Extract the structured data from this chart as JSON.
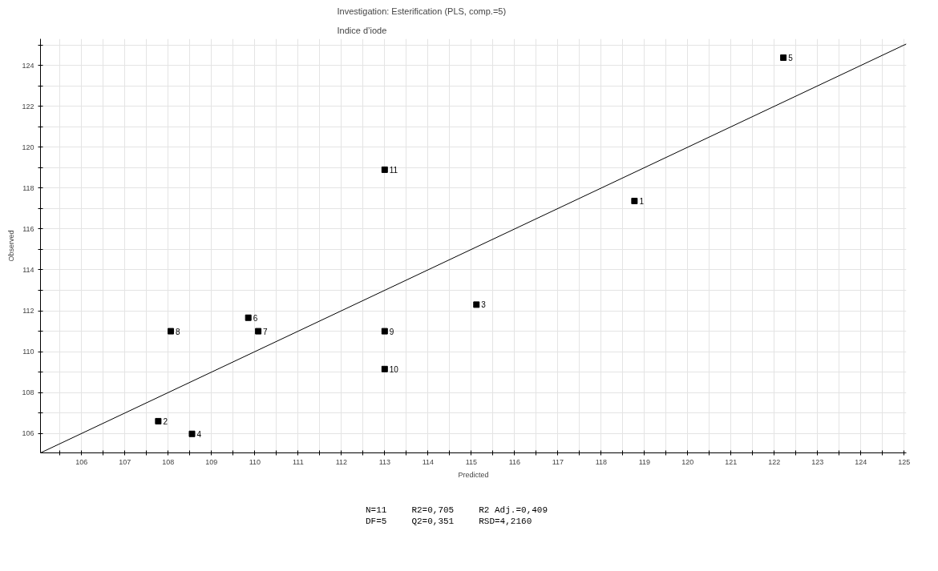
{
  "chart_data": {
    "type": "scatter",
    "title": "Investigation: Esterification (PLS, comp.=5)",
    "subtitle": "Indice d’iode",
    "xlabel": "Predicted",
    "ylabel": "Observed",
    "series": [
      {
        "color": "#000000",
        "marker": "square",
        "x": [
          118.77,
          107.77,
          115.12,
          108.55,
          122.21,
          109.85,
          110.08,
          108.06,
          113.0,
          113.0,
          113.0
        ],
        "values": [
          117.37,
          106.6,
          112.3,
          105.98,
          124.38,
          111.66,
          111.0,
          111.0,
          111.0,
          109.15,
          118.9
        ]
      },
      {
        "type": "line",
        "color": "#000000",
        "marker": "none",
        "line_style": "solid",
        "x": [
          105.05,
          125.05
        ],
        "values": [
          105.05,
          125.05
        ]
      }
    ],
    "annotations": [
      {
        "text": "1",
        "x": 118.77,
        "y": 117.37
      },
      {
        "text": "2",
        "x": 107.77,
        "y": 106.6
      },
      {
        "text": "3",
        "x": 115.12,
        "y": 112.3
      },
      {
        "text": "4",
        "x": 108.55,
        "y": 105.98
      },
      {
        "text": "5",
        "x": 122.21,
        "y": 124.38
      },
      {
        "text": "6",
        "x": 109.85,
        "y": 111.66
      },
      {
        "text": "7",
        "x": 110.08,
        "y": 111.0
      },
      {
        "text": "8",
        "x": 108.06,
        "y": 111.0
      },
      {
        "text": "9",
        "x": 113.0,
        "y": 111.0
      },
      {
        "text": "10",
        "x": 113.0,
        "y": 109.15
      },
      {
        "text": "11",
        "x": 113.0,
        "y": 118.9
      },
      "N=11",
      "R2=0,705",
      "R2 Adj.=0,409",
      "DF=5",
      "Q2=0,351",
      "RSD=4,2160"
    ],
    "xlim": [
      105.05,
      125.05
    ],
    "ylim": [
      105.05,
      125.3
    ],
    "xticks": [
      {
        "value": 105.5,
        "label": null
      },
      106,
      {
        "value": 106.5,
        "label": null
      },
      107,
      {
        "value": 107.5,
        "label": null
      },
      108,
      {
        "value": 108.5,
        "label": null
      },
      109,
      {
        "value": 109.5,
        "label": null
      },
      110,
      {
        "value": 110.5,
        "label": null
      },
      111,
      {
        "value": 111.5,
        "label": null
      },
      112,
      {
        "value": 112.5,
        "label": null
      },
      113,
      {
        "value": 113.5,
        "label": null
      },
      114,
      {
        "value": 114.5,
        "label": null
      },
      115,
      {
        "value": 115.5,
        "label": null
      },
      116,
      {
        "value": 116.5,
        "label": null
      },
      117,
      {
        "value": 117.5,
        "label": null
      },
      118,
      {
        "value": 118.5,
        "label": null
      },
      119,
      {
        "value": 119.5,
        "label": null
      },
      120,
      {
        "value": 120.5,
        "label": null
      },
      121,
      {
        "value": 121.5,
        "label": null
      },
      122,
      {
        "value": 122.5,
        "label": null
      },
      123,
      {
        "value": 123.5,
        "label": null
      },
      124,
      {
        "value": 124.5,
        "label": null
      },
      125
    ],
    "yticks": [
      106,
      {
        "value": 107,
        "label": null
      },
      108,
      {
        "value": 109,
        "label": null
      },
      110,
      {
        "value": 111,
        "label": null
      },
      112,
      {
        "value": 113,
        "label": null
      },
      114,
      {
        "value": 115,
        "label": null
      },
      116,
      {
        "value": 117,
        "label": null
      },
      118,
      {
        "value": 119,
        "label": null
      },
      120,
      {
        "value": 121,
        "label": null
      },
      122,
      {
        "value": 123,
        "label": null
      },
      124,
      {
        "value": 125,
        "label": null
      }
    ],
    "grid": true
  }
}
